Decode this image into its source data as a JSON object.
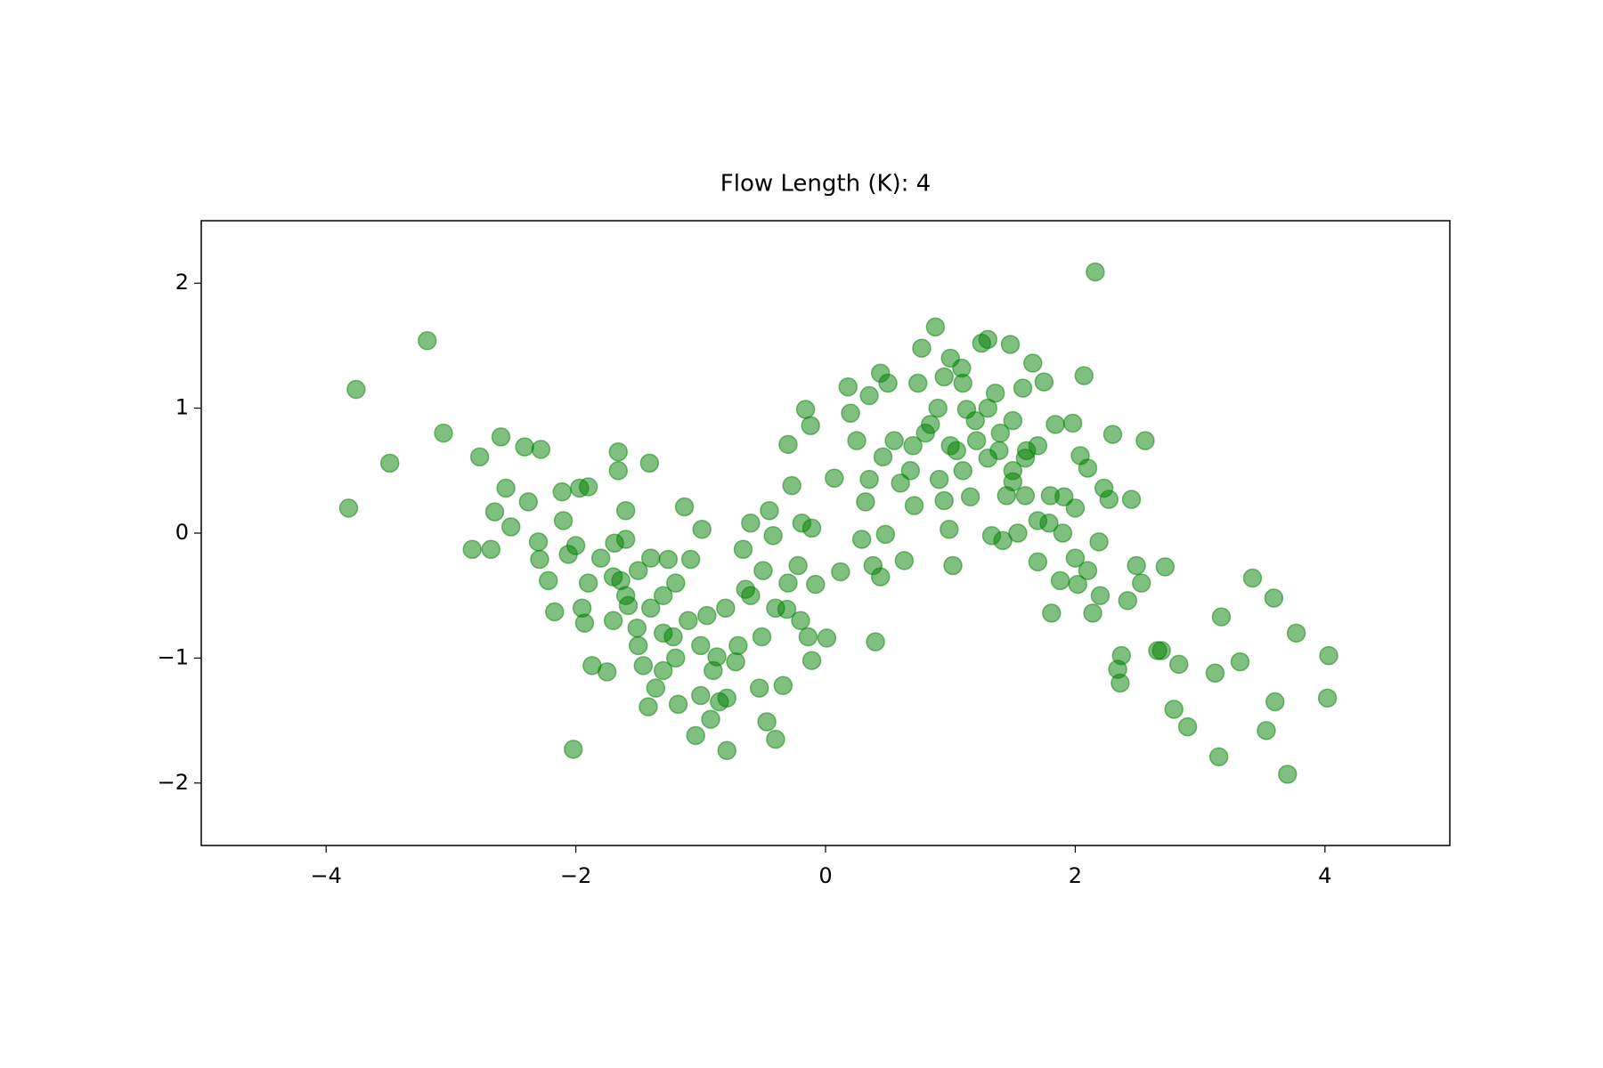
{
  "chart_data": {
    "type": "scatter",
    "title": "Flow Length (K): 4",
    "xlim": [
      -5,
      5
    ],
    "ylim": [
      -2.5,
      2.5
    ],
    "xticks": [
      {
        "value": -4,
        "label": "−4"
      },
      {
        "value": -2,
        "label": "−2"
      },
      0,
      2,
      4
    ],
    "yticks": [
      {
        "value": -2,
        "label": "−2"
      },
      {
        "value": -1,
        "label": "−1"
      },
      0,
      1,
      2
    ],
    "color": "#008000",
    "alpha": 0.5,
    "grid": false,
    "x": [
      -3.82,
      -3.76,
      -3.19,
      -3.49,
      -3.06,
      -2.77,
      -2.6,
      -2.41,
      -2.28,
      -2.83,
      -2.68,
      -2.56,
      -2.65,
      -2.52,
      -2.38,
      -2.3,
      -2.29,
      -2.22,
      -2.17,
      -2.11,
      -2.06,
      -2.02,
      -1.97,
      -1.9,
      -1.95,
      -1.93,
      -1.87,
      -1.75,
      -1.66,
      -1.66,
      -1.6,
      -1.41,
      -1.69,
      -1.64,
      -1.58,
      -1.51,
      -1.46,
      -1.42,
      -1.36,
      -1.3,
      -1.26,
      -1.22,
      -1.18,
      -1.13,
      -1.08,
      -1.04,
      -0.99,
      -0.95,
      -0.92,
      -0.87,
      -0.79,
      -0.79,
      -0.72,
      -0.66,
      -0.64,
      -0.6,
      -0.53,
      -0.51,
      -0.47,
      -0.45,
      -0.42,
      -0.4,
      -0.34,
      -0.31,
      -0.3,
      -0.27,
      -0.22,
      -0.19,
      -0.16,
      -0.14,
      -0.12,
      -0.11,
      -0.11,
      -0.08,
      0.01,
      0.07,
      0.12,
      0.18,
      0.2,
      0.25,
      0.29,
      0.32,
      0.35,
      0.38,
      0.4,
      0.44,
      0.44,
      0.46,
      0.48,
      0.55,
      0.63,
      0.68,
      0.71,
      0.74,
      0.77,
      0.88,
      0.84,
      0.91,
      0.95,
      0.99,
      1.02,
      1.05,
      1.09,
      1.13,
      1.16,
      1.21,
      1.25,
      1.3,
      1.33,
      1.36,
      1.39,
      1.42,
      1.48,
      1.5,
      1.54,
      1.58,
      1.61,
      1.66,
      1.7,
      1.75,
      1.79,
      1.81,
      1.84,
      1.88,
      1.91,
      1.98,
      2.02,
      2.04,
      2.07,
      2.1,
      2.14,
      2.16,
      2.19,
      2.23,
      2.27,
      2.3,
      2.34,
      2.36,
      2.37,
      2.42,
      2.45,
      2.49,
      2.53,
      2.56,
      2.66,
      2.69,
      2.72,
      2.79,
      2.83,
      2.9,
      3.12,
      3.15,
      3.17,
      3.32,
      3.42,
      3.53,
      3.59,
      3.6,
      3.7,
      3.77,
      4.02,
      4.03,
      -1.8,
      -1.7,
      -1.6,
      -1.5,
      -1.4,
      -1.3,
      -1.2,
      -1.1,
      -1.0,
      -0.9,
      -1.3,
      -1.5,
      -1.7,
      -1.9,
      -2.0,
      -2.1,
      -1.2,
      -0.8,
      -0.6,
      -0.4,
      -0.2,
      -0.3,
      -0.5,
      -0.7,
      -1.0,
      -0.85,
      -1.4,
      -1.6,
      1.0,
      1.1,
      1.2,
      1.3,
      1.4,
      1.5,
      1.6,
      1.7,
      1.5,
      0.9,
      0.8,
      1.0,
      0.95,
      1.3,
      1.6,
      1.8,
      1.9,
      2.0,
      2.1,
      2.2,
      1.1,
      0.7,
      0.5,
      0.35,
      0.6,
      1.45,
      1.7,
      2.0
    ],
    "values": [
      0.2,
      1.15,
      1.54,
      0.56,
      0.8,
      0.61,
      0.77,
      0.69,
      0.67,
      -0.13,
      -0.13,
      0.36,
      0.17,
      0.05,
      0.25,
      -0.07,
      -0.21,
      -0.38,
      -0.63,
      0.33,
      -0.17,
      -1.73,
      0.36,
      0.37,
      -0.6,
      -0.72,
      -1.06,
      -1.11,
      0.65,
      0.5,
      0.18,
      0.56,
      -0.08,
      -0.38,
      -0.58,
      -0.76,
      -1.06,
      -1.39,
      -1.24,
      -0.5,
      -0.21,
      -0.83,
      -1.37,
      0.21,
      -0.21,
      -1.62,
      0.03,
      -0.66,
      -1.49,
      -0.99,
      -1.74,
      -1.32,
      -1.03,
      -0.13,
      -0.45,
      0.08,
      -1.24,
      -0.83,
      -1.51,
      0.18,
      -0.02,
      -1.65,
      -1.22,
      -0.61,
      0.71,
      0.38,
      -0.26,
      0.08,
      0.99,
      -0.83,
      0.86,
      -1.02,
      0.04,
      -0.41,
      -0.84,
      0.44,
      -0.31,
      1.17,
      0.96,
      0.74,
      -0.05,
      0.25,
      0.43,
      -0.26,
      -0.87,
      -0.35,
      1.28,
      0.61,
      -0.01,
      0.74,
      -0.22,
      0.5,
      0.22,
      1.2,
      1.48,
      1.65,
      0.87,
      0.43,
      0.26,
      0.03,
      -0.26,
      0.66,
      1.32,
      0.99,
      0.29,
      0.74,
      1.52,
      1.55,
      -0.02,
      1.12,
      0.66,
      -0.06,
      1.51,
      0.41,
      0.0,
      1.16,
      0.66,
      1.36,
      -0.23,
      1.21,
      0.08,
      -0.64,
      0.87,
      -0.38,
      0.29,
      0.88,
      -0.41,
      0.62,
      1.26,
      0.52,
      -0.64,
      2.09,
      -0.07,
      0.36,
      0.27,
      0.79,
      -1.09,
      -1.2,
      -0.98,
      -0.54,
      0.27,
      -0.26,
      -0.4,
      0.74,
      -0.94,
      -0.94,
      -0.27,
      -1.41,
      -1.05,
      -1.55,
      -1.12,
      -1.79,
      -0.67,
      -1.03,
      -0.36,
      -1.58,
      -0.52,
      -1.35,
      -1.93,
      -0.8,
      -1.32,
      -0.98,
      -0.2,
      -0.35,
      -0.5,
      -0.3,
      -0.6,
      -0.8,
      -1.0,
      -0.7,
      -0.9,
      -1.1,
      -1.1,
      -0.9,
      -0.7,
      -0.4,
      -0.1,
      0.1,
      -0.4,
      -0.6,
      -0.5,
      -0.6,
      -0.7,
      -0.4,
      -0.3,
      -0.9,
      -1.3,
      -1.35,
      -0.2,
      -0.05,
      0.7,
      1.2,
      0.9,
      0.6,
      0.8,
      0.5,
      0.3,
      0.1,
      0.9,
      1.0,
      0.8,
      1.4,
      1.25,
      1.0,
      0.6,
      0.3,
      0.0,
      -0.2,
      -0.3,
      -0.5,
      0.5,
      0.7,
      1.2,
      1.1,
      0.4,
      0.3,
      0.7,
      0.2
    ]
  }
}
